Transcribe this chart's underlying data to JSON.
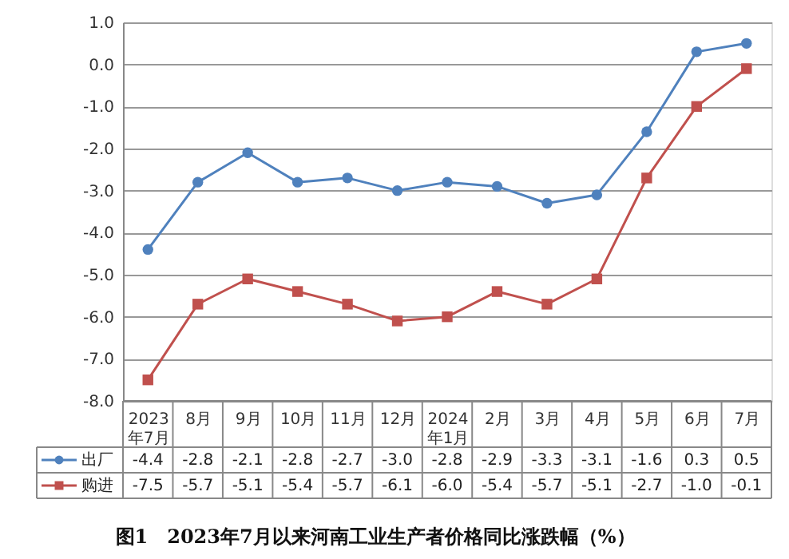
{
  "chart_data": {
    "type": "line",
    "title": "图1　2023年7月以来河南工业生产者价格同比涨跌幅（%）",
    "categories": [
      "2023年7月",
      "8月",
      "9月",
      "10月",
      "11月",
      "12月",
      "2024年1月",
      "2月",
      "3月",
      "4月",
      "5月",
      "6月",
      "7月"
    ],
    "series": [
      {
        "name": "出厂",
        "color": "#4f81bd",
        "marker": "circle",
        "values": [
          -4.4,
          -2.8,
          -2.1,
          -2.8,
          -2.7,
          -3.0,
          -2.8,
          -2.9,
          -3.3,
          -3.1,
          -1.6,
          0.3,
          0.5
        ],
        "value_labels": [
          "-4.4",
          "-2.8",
          "-2.1",
          "-2.8",
          "-2.7",
          "-3.0",
          "-2.8",
          "-2.9",
          "-3.3",
          "-3.1",
          "-1.6",
          "0.3",
          "0.5"
        ]
      },
      {
        "name": "购进",
        "color": "#c0504d",
        "marker": "square",
        "values": [
          -7.5,
          -5.7,
          -5.1,
          -5.4,
          -5.7,
          -6.1,
          -6.0,
          -5.4,
          -5.7,
          -5.1,
          -2.7,
          -1.0,
          -0.1
        ],
        "value_labels": [
          "-7.5",
          "-5.7",
          "-5.1",
          "-5.4",
          "-5.7",
          "-6.1",
          "-6.0",
          "-5.4",
          "-5.7",
          "-5.1",
          "-2.7",
          "-1.0",
          "-0.1"
        ]
      }
    ],
    "ylim": [
      -8.0,
      1.0
    ],
    "yticks": [
      {
        "value": -8,
        "label": "-8.0"
      },
      {
        "value": -7,
        "label": "-7.0"
      },
      {
        "value": -6,
        "label": "-6.0"
      },
      {
        "value": -5,
        "label": "-5.0"
      },
      {
        "value": -4,
        "label": "-4.0"
      },
      {
        "value": -3,
        "label": "-3.0"
      },
      {
        "value": -2,
        "label": "-2.0"
      },
      {
        "value": -1,
        "label": "-1.0"
      },
      {
        "value": 0,
        "label": "0.0"
      },
      {
        "value": 1,
        "label": "1.0"
      }
    ],
    "grid": "y",
    "legend": "bottom left",
    "line_style": "solid"
  }
}
